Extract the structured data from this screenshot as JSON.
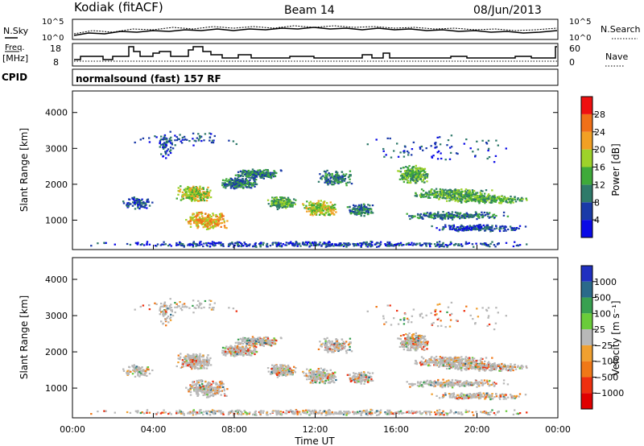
{
  "header": {
    "station": "Kodiak (fitACF)",
    "beam": "Beam 14",
    "date": "08/Jun/2013"
  },
  "noise_panel": {
    "left_label": "N.Sky",
    "right_label": "N.Search",
    "tick_top": "10^5",
    "tick_bottom": "10^0"
  },
  "freq_panel": {
    "label_line1": "Freq.",
    "label_line2": "[MHz]",
    "left_ticks": [
      "18",
      "8"
    ],
    "right_ticks": [
      "60",
      "0"
    ],
    "right_label": "Nave"
  },
  "cpid_panel": {
    "label": "CPID",
    "program": "normalsound (fast) 157 RF"
  },
  "chart_data": [
    {
      "type": "heatmap",
      "panel": "power",
      "ylabel": "Slant Range [km]",
      "yticks": [
        "1000",
        "2000",
        "3000",
        "4000"
      ],
      "ylim": [
        180,
        4600
      ],
      "xlim": [
        0,
        24
      ],
      "colorbar": {
        "label": "Power [dB]",
        "ticks": [
          "4",
          "8",
          "12",
          "16",
          "20",
          "24",
          "28"
        ],
        "colors": [
          "#0a0ae6",
          "#1a3aa8",
          "#2f7a6a",
          "#3faa3a",
          "#9ed22a",
          "#f2a024",
          "#f07018",
          "#ee1010"
        ]
      }
    },
    {
      "type": "heatmap",
      "panel": "velocity",
      "ylabel": "Slant Range [km]",
      "yticks": [
        "1000",
        "2000",
        "3000",
        "4000"
      ],
      "ylim": [
        180,
        4600
      ],
      "xlim": [
        0,
        24
      ],
      "xlabel": "Time UT",
      "xticks": [
        "00:00",
        "04:00",
        "08:00",
        "12:00",
        "16:00",
        "20:00",
        "00:00"
      ],
      "colorbar": {
        "label": "Velocity [m s⁻¹]",
        "ticks": [
          "1000",
          "500",
          "100",
          "25",
          "−25",
          "−100",
          "−500",
          "−1000"
        ],
        "colors": [
          "#2030c0",
          "#2a6a8a",
          "#38a050",
          "#6acc3a",
          "#b8b8b8",
          "#f0a030",
          "#f07818",
          "#ee3010",
          "#e00000"
        ]
      }
    }
  ]
}
